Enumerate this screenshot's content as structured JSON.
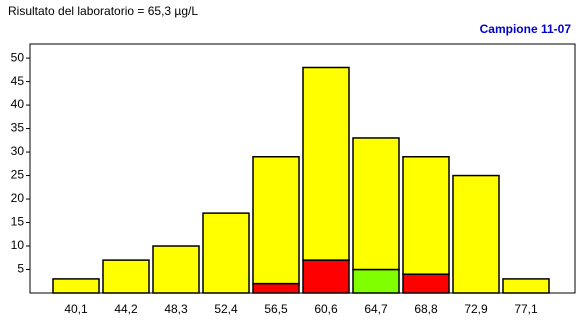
{
  "chart_data": {
    "type": "bar",
    "title": "Risultato del laboratorio = 65,3 µg/L",
    "subtitle": "Campione 11-07",
    "categories": [
      "40,1",
      "44,2",
      "48,3",
      "52,4",
      "56,5",
      "60,6",
      "64,7",
      "68,8",
      "72,9",
      "77,1"
    ],
    "stacked": true,
    "series": [
      {
        "colors": [
          "#ff0000",
          "#ff0000",
          "#ff0000",
          "#ff0000",
          "#ff0000",
          "#ff0000",
          "#80ff00",
          "#ff0000",
          "#ff0000",
          "#ff0000"
        ],
        "values": [
          null,
          null,
          null,
          null,
          2,
          7,
          5,
          4,
          null,
          null
        ]
      },
      {
        "color": "#ffff00",
        "values": [
          3,
          7,
          10,
          17,
          27,
          41,
          28,
          25,
          25,
          3
        ]
      }
    ],
    "ylim": [
      0,
      53
    ],
    "yticks": [
      5,
      10,
      15,
      20,
      25,
      30,
      35,
      40,
      45,
      50
    ],
    "grid": false
  }
}
